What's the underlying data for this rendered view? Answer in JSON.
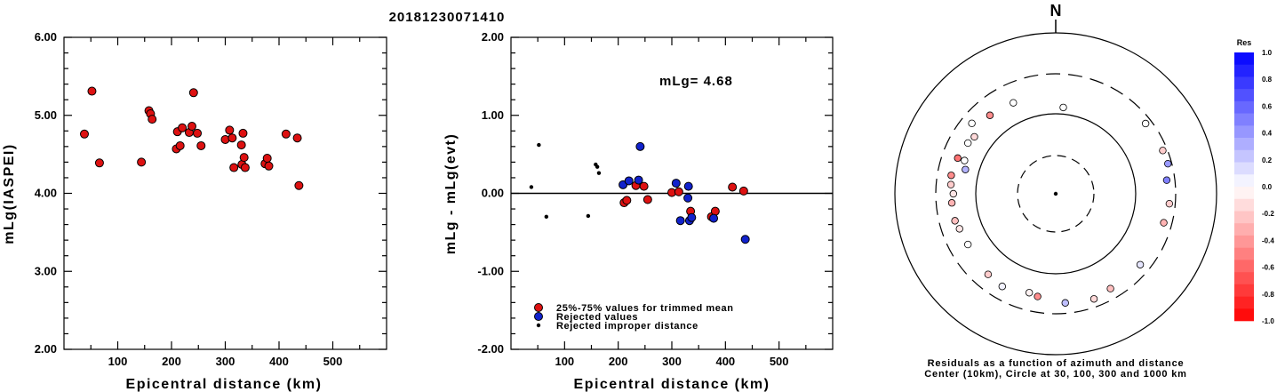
{
  "title": "20181230071410",
  "chart_data": [
    {
      "type": "scatter",
      "xlabel": "Epicentral distance (km)",
      "ylabel": "mLg(IASPEI)",
      "xlim": [
        0,
        600
      ],
      "ylim": [
        2.0,
        6.0
      ],
      "x_ticks": [
        "100",
        "200",
        "300",
        "400",
        "500"
      ],
      "y_ticks": [
        "2.00",
        "3.00",
        "4.00",
        "5.00",
        "6.00"
      ],
      "series": [
        {
          "color": "#dd1111",
          "points": [
            [
              38,
              4.76
            ],
            [
              52,
              5.31
            ],
            [
              66,
              4.39
            ],
            [
              144,
              4.4
            ],
            [
              158,
              5.06
            ],
            [
              161,
              5.02
            ],
            [
              164,
              4.95
            ],
            [
              209,
              4.57
            ],
            [
              211,
              4.79
            ],
            [
              216,
              4.61
            ],
            [
              220,
              4.84
            ],
            [
              233,
              4.78
            ],
            [
              238,
              4.86
            ],
            [
              241,
              5.29
            ],
            [
              248,
              4.77
            ],
            [
              255,
              4.61
            ],
            [
              300,
              4.69
            ],
            [
              308,
              4.81
            ],
            [
              313,
              4.71
            ],
            [
              316,
              4.33
            ],
            [
              330,
              4.62
            ],
            [
              331,
              4.37
            ],
            [
              333,
              4.77
            ],
            [
              335,
              4.46
            ],
            [
              337,
              4.33
            ],
            [
              374,
              4.38
            ],
            [
              378,
              4.45
            ],
            [
              381,
              4.35
            ],
            [
              413,
              4.76
            ],
            [
              434,
              4.71
            ],
            [
              437,
              4.1
            ]
          ]
        }
      ]
    },
    {
      "type": "scatter",
      "xlabel": "Epicentral distance (km)",
      "ylabel": "mLg - mLg(evt)",
      "xlim": [
        0,
        600
      ],
      "ylim": [
        -2.0,
        2.0
      ],
      "x_ticks": [
        "100",
        "200",
        "300",
        "400",
        "500"
      ],
      "y_ticks": [
        "-2.00",
        "-1.00",
        "0.00",
        "1.00",
        "2.00"
      ],
      "annotation": "mLg= 4.68",
      "zero_line": true,
      "series": [
        {
          "name": "25%-75% values for trimmed mean",
          "color": "#dd1111",
          "points": [
            [
              211,
              -0.12
            ],
            [
              216,
              -0.09
            ],
            [
              233,
              0.1
            ],
            [
              248,
              0.09
            ],
            [
              255,
              -0.08
            ],
            [
              300,
              0.01
            ],
            [
              313,
              0.02
            ],
            [
              335,
              -0.23
            ],
            [
              374,
              -0.3
            ],
            [
              381,
              -0.23
            ],
            [
              413,
              0.08
            ],
            [
              434,
              0.03
            ]
          ]
        },
        {
          "name": "Rejected values",
          "color": "#1122cc",
          "points": [
            [
              209,
              0.11
            ],
            [
              220,
              0.16
            ],
            [
              238,
              0.17
            ],
            [
              241,
              0.6
            ],
            [
              308,
              0.13
            ],
            [
              316,
              -0.35
            ],
            [
              330,
              -0.06
            ],
            [
              331,
              0.09
            ],
            [
              333,
              -0.35
            ],
            [
              337,
              -0.31
            ],
            [
              378,
              -0.32
            ],
            [
              437,
              -0.59
            ]
          ]
        },
        {
          "name": "Rejected improper distance",
          "color": "#000000",
          "points": [
            [
              38,
              0.08
            ],
            [
              52,
              0.62
            ],
            [
              66,
              -0.3
            ],
            [
              144,
              -0.29
            ],
            [
              158,
              0.37
            ],
            [
              161,
              0.34
            ],
            [
              164,
              0.26
            ]
          ]
        }
      ]
    },
    {
      "type": "scatter",
      "subtype": "polar-azimuth",
      "north_label": "N",
      "caption": [
        "Residuals as a function of azimuth and distance",
        "Center (10km), Circle at 30, 100, 300 and 1000 km"
      ],
      "colorbar_title": "Res",
      "colorbar_ticks": [
        "1.0",
        "0.8",
        "0.6",
        "0.4",
        "0.2",
        "0.0",
        "-0.2",
        "-0.4",
        "-0.6",
        "-0.8",
        "-1.0"
      ],
      "points_res": [
        [
          5,
          120,
          0.0
        ],
        [
          83,
          240,
          0.5
        ],
        [
          52,
          255,
          0.0
        ],
        [
          68,
          265,
          -0.2
        ],
        [
          75,
          270,
          0.4
        ],
        [
          95,
          255,
          -0.2
        ],
        [
          105,
          240,
          -0.3
        ],
        [
          130,
          230,
          0.1
        ],
        [
          150,
          225,
          -0.25
        ],
        [
          160,
          240,
          -0.15
        ],
        [
          175,
          225,
          0.25
        ],
        [
          190,
          195,
          -0.45
        ],
        [
          195,
          185,
          -0.05
        ],
        [
          210,
          210,
          0.05
        ],
        [
          220,
          200,
          -0.2
        ],
        [
          240,
          180,
          0.0
        ],
        [
          250,
          185,
          -0.1
        ],
        [
          255,
          195,
          -0.25
        ],
        [
          265,
          195,
          -0.3
        ],
        [
          275,
          200,
          -0.2
        ],
        [
          285,
          145,
          0.3
        ],
        [
          290,
          160,
          0.0
        ],
        [
          300,
          180,
          0.0
        ],
        [
          320,
          185,
          -0.45
        ],
        [
          310,
          225,
          0.0
        ],
        [
          290,
          195,
          -0.55
        ],
        [
          270,
          185,
          -0.1
        ],
        [
          280,
          205,
          -0.45
        ],
        [
          305,
          170,
          -0.15
        ],
        [
          335,
          175,
          0.0
        ]
      ]
    }
  ]
}
